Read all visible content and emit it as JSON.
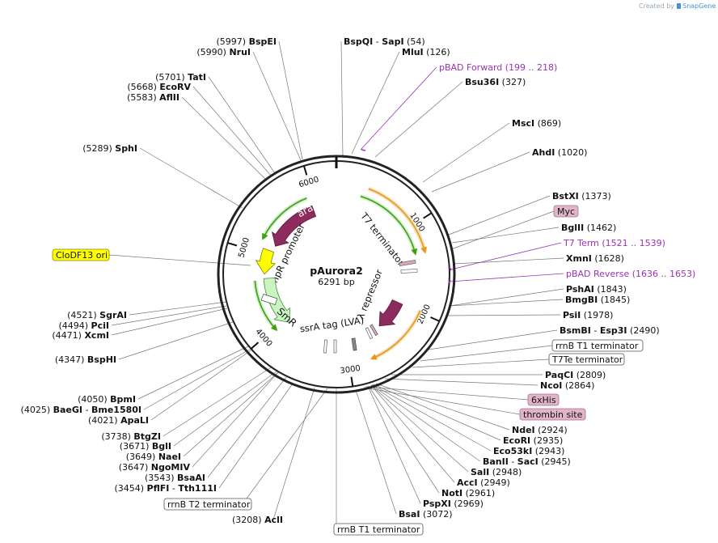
{
  "watermark": {
    "prefix": "Created by",
    "brand": "SnapGene"
  },
  "plasmid": {
    "name": "pAurora2",
    "size": "6291 bp",
    "length": 6291
  },
  "colors": {
    "backbone": "#222222",
    "araC": "#8e2b5e",
    "lambda_repressor": "#8e2b5e",
    "ampr_promoter": "#ffff00",
    "smr": "#c8f5c0",
    "arc_green": "#3f9f10",
    "arc_orange": "#e49a1c",
    "primer": "#9b30b8",
    "myc_box": "#e2b4c8",
    "ori_box": "#ffff00"
  },
  "ticks": [
    {
      "bp": 1000,
      "label": "1000"
    },
    {
      "bp": 2000,
      "label": "2000"
    },
    {
      "bp": 3000,
      "label": "3000"
    },
    {
      "bp": 4000,
      "label": "4000"
    },
    {
      "bp": 5000,
      "label": "5000"
    },
    {
      "bp": 6000,
      "label": "6000"
    }
  ],
  "features": [
    {
      "id": "arac",
      "name": "araC",
      "start": 5950,
      "end": 5150,
      "strand": "-",
      "type": "gene"
    },
    {
      "id": "ampr-promoter",
      "name": "AmpR promoter",
      "start": 5060,
      "end": 4720,
      "strand": "-",
      "type": "promoter"
    },
    {
      "id": "smr",
      "name": "SmR",
      "start": 4660,
      "end": 3920,
      "strand": "-",
      "type": "gene"
    },
    {
      "id": "lambda-repressor",
      "name": "λ repressor",
      "start": 2000,
      "end": 2450,
      "strand": "+",
      "type": "gene"
    },
    {
      "id": "t7-terminator",
      "name": "T7 terminator",
      "start": 1521,
      "end": 1539,
      "strand": "+",
      "type": "terminator"
    },
    {
      "id": "ssra-tag",
      "name": "ssrA tag (LVA)",
      "start": 2860,
      "end": 2925,
      "strand": "+",
      "type": "tag"
    }
  ],
  "arcs": [
    {
      "id": "arc-green-left",
      "start": 5920,
      "end": 5180,
      "color": "green",
      "dir": "ccw",
      "radius": 101
    },
    {
      "id": "arc-green-left-low",
      "start": 4640,
      "end": 3980,
      "color": "green",
      "dir": "ccw",
      "radius": 101
    },
    {
      "id": "arc-green-right",
      "start": 300,
      "end": 1310,
      "color": "green",
      "dir": "cw",
      "radius": 101
    },
    {
      "id": "arc-orange-right",
      "start": 360,
      "end": 1320,
      "color": "orange",
      "dir": "cw",
      "radius": 113
    },
    {
      "id": "arc-orange-right-low",
      "start": 1980,
      "end": 2740,
      "color": "orange",
      "dir": "cw",
      "radius": 113
    }
  ],
  "site_labels": [
    {
      "id": "bspei",
      "pos": "(5997)",
      "enzymes": [
        "BspEI"
      ],
      "sep": "",
      "bp": 5997
    },
    {
      "id": "nrui",
      "pos": "(5990)",
      "enzymes": [
        "NruI"
      ],
      "sep": "",
      "bp": 5990
    },
    {
      "id": "tati",
      "pos": "(5701)",
      "enzymes": [
        "TatI"
      ],
      "sep": "",
      "bp": 5701
    },
    {
      "id": "ecorv",
      "pos": "(5668)",
      "enzymes": [
        "EcoRV"
      ],
      "sep": "",
      "bp": 5668
    },
    {
      "id": "aflii",
      "pos": "(5583)",
      "enzymes": [
        "AflII"
      ],
      "sep": "",
      "bp": 5583
    },
    {
      "id": "sphi",
      "pos": "(5289)",
      "enzymes": [
        "SphI"
      ],
      "sep": "",
      "bp": 5289
    },
    {
      "id": "sgrai",
      "pos": "(4521)",
      "enzymes": [
        "SgrAI"
      ],
      "sep": "",
      "bp": 4521
    },
    {
      "id": "pcii",
      "pos": "(4494)",
      "enzymes": [
        "PciI"
      ],
      "sep": "",
      "bp": 4494
    },
    {
      "id": "xcmi",
      "pos": "(4471)",
      "enzymes": [
        "XcmI"
      ],
      "sep": "",
      "bp": 4471
    },
    {
      "id": "bsphi",
      "pos": "(4347)",
      "enzymes": [
        "BspHI"
      ],
      "sep": "",
      "bp": 4347
    },
    {
      "id": "bpmi",
      "pos": "(4050)",
      "enzymes": [
        "BpmI"
      ],
      "sep": "",
      "bp": 4050
    },
    {
      "id": "baegi",
      "pos": "(4025)",
      "enzymes": [
        "BaeGI",
        "Bme1580I"
      ],
      "sep": " - ",
      "bp": 4025
    },
    {
      "id": "apali",
      "pos": "(4021)",
      "enzymes": [
        "ApaLI"
      ],
      "sep": "",
      "bp": 4021
    },
    {
      "id": "btgzi",
      "pos": "(3738)",
      "enzymes": [
        "BtgZI"
      ],
      "sep": "",
      "bp": 3738
    },
    {
      "id": "bgli",
      "pos": "(3671)",
      "enzymes": [
        "BglI"
      ],
      "sep": "",
      "bp": 3671
    },
    {
      "id": "naei",
      "pos": "(3649)",
      "enzymes": [
        "NaeI"
      ],
      "sep": "",
      "bp": 3649
    },
    {
      "id": "ngomiv",
      "pos": "(3647)",
      "enzymes": [
        "NgoMIV"
      ],
      "sep": "",
      "bp": 3647
    },
    {
      "id": "bsaai",
      "pos": "(3543)",
      "enzymes": [
        "BsaAI"
      ],
      "sep": "",
      "bp": 3543
    },
    {
      "id": "pflfi",
      "pos": "(3454)",
      "enzymes": [
        "PflFI",
        "Tth111I"
      ],
      "sep": " - ",
      "bp": 3454
    },
    {
      "id": "acli",
      "pos": "(3208)",
      "enzymes": [
        "AclI"
      ],
      "sep": "",
      "bp": 3208
    },
    {
      "id": "bspqi",
      "pos": "(54)",
      "enzymes": [
        "BspQI",
        "SapI"
      ],
      "sep": " - ",
      "bp": 54
    },
    {
      "id": "mlui",
      "pos": "(126)",
      "enzymes": [
        "MluI"
      ],
      "sep": "",
      "bp": 126
    },
    {
      "id": "bsu36i",
      "pos": "(327)",
      "enzymes": [
        "Bsu36I"
      ],
      "sep": "",
      "bp": 327
    },
    {
      "id": "msci",
      "pos": "(869)",
      "enzymes": [
        "MscI"
      ],
      "sep": "",
      "bp": 869
    },
    {
      "id": "ahdi",
      "pos": "(1020)",
      "enzymes": [
        "AhdI"
      ],
      "sep": "",
      "bp": 1020
    },
    {
      "id": "bstxi",
      "pos": "(1373)",
      "enzymes": [
        "BstXI"
      ],
      "sep": "",
      "bp": 1373
    },
    {
      "id": "bglii",
      "pos": "(1462)",
      "enzymes": [
        "BglII"
      ],
      "sep": "",
      "bp": 1462
    },
    {
      "id": "xmni",
      "pos": "(1628)",
      "enzymes": [
        "XmnI"
      ],
      "sep": "",
      "bp": 1628
    },
    {
      "id": "pshai",
      "pos": "(1843)",
      "enzymes": [
        "PshAI"
      ],
      "sep": "",
      "bp": 1843
    },
    {
      "id": "bmgbi",
      "pos": "(1845)",
      "enzymes": [
        "BmgBI"
      ],
      "sep": "",
      "bp": 1845
    },
    {
      "id": "psii",
      "pos": "(1978)",
      "enzymes": [
        "PsiI"
      ],
      "sep": "",
      "bp": 1978
    },
    {
      "id": "bsmbi",
      "pos": "(2490)",
      "enzymes": [
        "BsmBI",
        "Esp3I"
      ],
      "sep": " - ",
      "bp": 2490
    },
    {
      "id": "paqci",
      "pos": "(2809)",
      "enzymes": [
        "PaqCI"
      ],
      "sep": "",
      "bp": 2809
    },
    {
      "id": "ncoi",
      "pos": "(2864)",
      "enzymes": [
        "NcoI"
      ],
      "sep": "",
      "bp": 2864
    },
    {
      "id": "ndei",
      "pos": "(2924)",
      "enzymes": [
        "NdeI"
      ],
      "sep": "",
      "bp": 2924
    },
    {
      "id": "ecori",
      "pos": "(2935)",
      "enzymes": [
        "EcoRI"
      ],
      "sep": "",
      "bp": 2935
    },
    {
      "id": "eco53ki",
      "pos": "(2943)",
      "enzymes": [
        "Eco53kI"
      ],
      "sep": "",
      "bp": 2943
    },
    {
      "id": "banii",
      "pos": "(2945)",
      "enzymes": [
        "BanII",
        "SacI"
      ],
      "sep": " - ",
      "bp": 2945
    },
    {
      "id": "sali",
      "pos": "(2948)",
      "enzymes": [
        "SalI"
      ],
      "sep": "",
      "bp": 2948
    },
    {
      "id": "acci",
      "pos": "(2949)",
      "enzymes": [
        "AccI"
      ],
      "sep": "",
      "bp": 2949
    },
    {
      "id": "noti",
      "pos": "(2961)",
      "enzymes": [
        "NotI"
      ],
      "sep": "",
      "bp": 2961
    },
    {
      "id": "pspxi",
      "pos": "(2969)",
      "enzymes": [
        "PspXI"
      ],
      "sep": "",
      "bp": 2969
    },
    {
      "id": "bsai",
      "pos": "(3072)",
      "enzymes": [
        "BsaI"
      ],
      "sep": "",
      "bp": 3072
    }
  ],
  "boxed_labels": [
    {
      "id": "clodf13-ori",
      "text": "CloDF13 ori",
      "style": "ori",
      "bp": 5065
    },
    {
      "id": "myc",
      "text": "Myc",
      "style": "tag",
      "bp": 1430
    },
    {
      "id": "rrnb-t1-terminator-right",
      "text": "rrnB T1 terminator",
      "style": "term",
      "bp": 2600
    },
    {
      "id": "t7te-terminator",
      "text": "T7Te terminator",
      "style": "term",
      "bp": 2680
    },
    {
      "id": "6xhis",
      "text": "6xHis",
      "style": "tag",
      "bp": 2880
    },
    {
      "id": "thrombin-site",
      "text": "thrombin site",
      "style": "tag",
      "bp": 2900
    },
    {
      "id": "rrnb-t2-terminator",
      "text": "rrnB T2 terminator",
      "style": "term",
      "bp": 3280
    },
    {
      "id": "rrnb-t1-terminator-bottom",
      "text": "rrnB T1 terminator",
      "style": "term",
      "bp": 3145
    }
  ],
  "primers": [
    {
      "id": "pbad-forward",
      "name": "pBAD Forward",
      "range": "(199 .. 218)",
      "bp": 208
    },
    {
      "id": "t7-term",
      "name": "T7 Term",
      "range": "(1521 .. 1539)",
      "bp": 1530
    },
    {
      "id": "pbad-reverse",
      "name": "pBAD Reverse",
      "range": "(1636 .. 1653)",
      "bp": 1645
    }
  ]
}
